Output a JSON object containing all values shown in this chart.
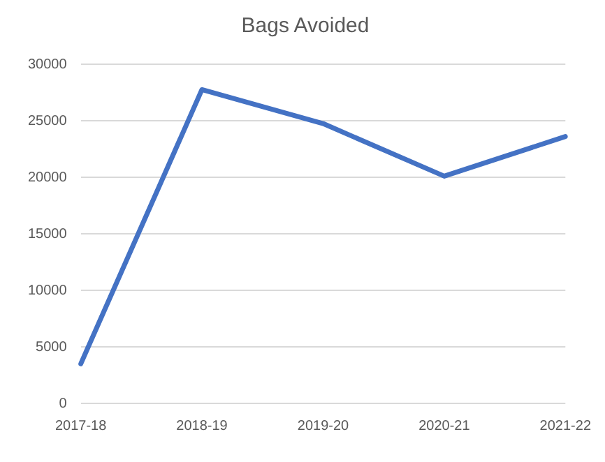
{
  "chart_data": {
    "type": "line",
    "title": "Bags Avoided",
    "categories": [
      "2017-18",
      "2018-19",
      "2019-20",
      "2020-21",
      "2021-22"
    ],
    "series": [
      {
        "color": "#4472c4",
        "values": [
          3500,
          27750,
          24750,
          20100,
          23600
        ]
      }
    ],
    "ylim": [
      0,
      30000
    ],
    "yticks": [
      0,
      5000,
      10000,
      15000,
      20000,
      25000,
      30000
    ],
    "grid": "y",
    "legend": false,
    "marker": "none",
    "line_style": "solid"
  }
}
